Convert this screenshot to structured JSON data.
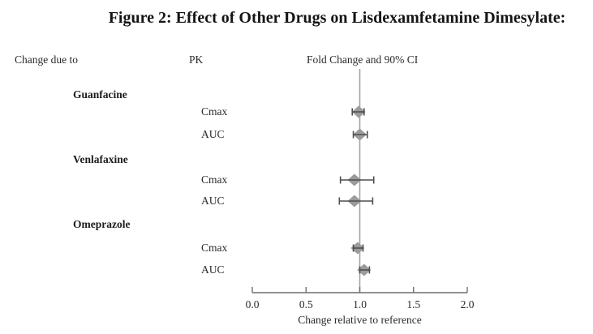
{
  "figure": {
    "title": "Figure 2: Effect of Other Drugs on Lisdexamfetamine Dimesylate:"
  },
  "headers": {
    "change_due_to": "Change due to",
    "pk": "PK",
    "fold_change": "Fold Change and 90% CI"
  },
  "chart_data": {
    "type": "forest",
    "xlabel": "Change relative to reference",
    "xlim": [
      0.0,
      2.0
    ],
    "xticks": [
      0.0,
      0.5,
      1.0,
      1.5,
      2.0
    ],
    "xtick_labels": [
      "0.0",
      "0.5",
      "1.0",
      "1.5",
      "2.0"
    ],
    "reference_line": 1.0,
    "grid": false,
    "groups": [
      {
        "drug": "Guanfacine",
        "rows": [
          {
            "pk": "Cmax",
            "estimate": 0.99,
            "ci_low": 0.93,
            "ci_high": 1.04
          },
          {
            "pk": "AUC",
            "estimate": 1.0,
            "ci_low": 0.94,
            "ci_high": 1.07
          }
        ]
      },
      {
        "drug": "Venlafaxine",
        "rows": [
          {
            "pk": "Cmax",
            "estimate": 0.95,
            "ci_low": 0.82,
            "ci_high": 1.13
          },
          {
            "pk": "AUC",
            "estimate": 0.95,
            "ci_low": 0.81,
            "ci_high": 1.12
          }
        ]
      },
      {
        "drug": "Omeprazole",
        "rows": [
          {
            "pk": "Cmax",
            "estimate": 0.98,
            "ci_low": 0.94,
            "ci_high": 1.03
          },
          {
            "pk": "AUC",
            "estimate": 1.04,
            "ci_low": 1.0,
            "ci_high": 1.09
          }
        ]
      }
    ]
  },
  "colors": {
    "diamond": "#9b9b9b",
    "error_bar": "#4f4f4f",
    "reference_line": "#a3a3a3",
    "axis": "#6e6e6e",
    "tick_text": "#2b2b2b"
  }
}
